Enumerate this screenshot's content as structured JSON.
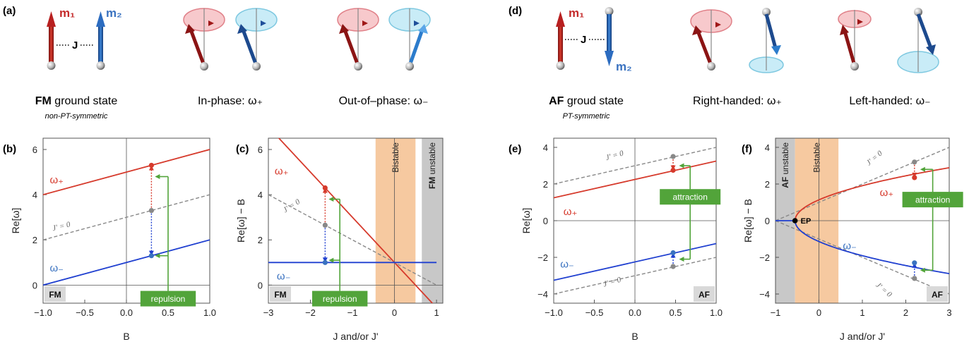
{
  "panel_labels": [
    "(a)",
    "(b)",
    "(c)",
    "(d)",
    "(e)",
    "(f)"
  ],
  "spin_labels": {
    "m1": "m₁",
    "m2": "m₂",
    "J": "J"
  },
  "captions": {
    "a1_bold": "FM",
    "a1_rest": " ground state",
    "a1_sub": "non-PT-symmetric",
    "a2": "In-phase: ω₊",
    "a3": "Out-of–phase: ω₋",
    "d1_bold": "AF",
    "d1_rest": " groud state",
    "d1_sub": "PT-symmetric",
    "d2": "Right-handed: ω₊",
    "d3": "Left-handed: ω₋"
  },
  "colors": {
    "red": "#d63a2c",
    "blue": "#1f3fd0",
    "gray": "#888888",
    "green": "#52a43a",
    "orange": "#f6c9a0",
    "lightgray": "#c8c8c8"
  },
  "chart_data": [
    {
      "id": "b",
      "type": "line",
      "xlabel": "B",
      "ylabel": "Re[ω]",
      "xlim": [
        -1.0,
        1.0
      ],
      "ylim": [
        -0.8,
        6.5
      ],
      "xticks": [
        -1.0,
        -0.5,
        0.0,
        0.5,
        1.0
      ],
      "xtick_labels": [
        "−1.0",
        "−0.5",
        "0.0",
        "0.5",
        "1.0"
      ],
      "yticks": [
        0,
        2,
        4,
        6
      ],
      "ytick_labels": [
        "0",
        "2",
        "4",
        "6"
      ],
      "series": [
        {
          "name": "ω₊",
          "color": "red",
          "x": [
            -1.0,
            1.0
          ],
          "y": [
            4.0,
            6.0
          ]
        },
        {
          "name": "J' = 0",
          "color": "gray",
          "dashed": true,
          "x": [
            -1.0,
            1.0
          ],
          "y": [
            2.0,
            4.0
          ]
        },
        {
          "name": "ω₋",
          "color": "blue",
          "x": [
            -1.0,
            1.0
          ],
          "y": [
            0.0,
            2.0
          ]
        }
      ],
      "points": [
        {
          "x": 0.3,
          "y": 5.3,
          "color": "red"
        },
        {
          "x": 0.3,
          "y": 3.3,
          "color": "gray"
        },
        {
          "x": 0.3,
          "y": 1.3,
          "color": "blue"
        }
      ],
      "shift_arrows": [
        {
          "x": 0.3,
          "from": 3.3,
          "to": 5.3,
          "color": "red"
        },
        {
          "x": 0.3,
          "from": 3.3,
          "to": 1.3,
          "color": "blue"
        }
      ],
      "bracket": {
        "x_vertical": 0.5,
        "y_from": 4.8,
        "y_mid": 3.05,
        "y_to": 1.3,
        "x_target": 0.3,
        "label": "repulsion",
        "label_y": -0.6
      },
      "series_labels": [
        {
          "text": "ω₊",
          "color": "red",
          "x": -0.92,
          "y": 4.5
        },
        {
          "text": "J' = 0",
          "color": "gray",
          "x": -0.88,
          "y": 2.4,
          "angle": -14
        },
        {
          "text": "ω₋",
          "color": "blue",
          "x": -0.92,
          "y": 0.6
        }
      ],
      "corner_label": "FM"
    },
    {
      "id": "c",
      "type": "line",
      "xlabel": "J and/or J'",
      "ylabel": "Re[ω] − B",
      "xlim": [
        -3.0,
        1.15
      ],
      "ylim": [
        -0.8,
        6.5
      ],
      "xticks": [
        -3,
        -2,
        -1,
        0,
        1
      ],
      "xtick_labels": [
        "−3",
        "−2",
        "−1",
        "0",
        "1"
      ],
      "yticks": [
        0,
        2,
        4,
        6
      ],
      "ytick_labels": [
        "0",
        "2",
        "4",
        "6"
      ],
      "regions": [
        {
          "x0": -0.45,
          "x1": 0.5,
          "color": "orange",
          "label": "Bistable"
        },
        {
          "x0": 0.65,
          "x1": 1.15,
          "color": "lightgray",
          "label_bold": "FM",
          "label": " unstable"
        }
      ],
      "series": [
        {
          "name": "ω₊",
          "color": "red",
          "x": [
            -3.0,
            1.0
          ],
          "y": [
            7.0,
            -1.0
          ]
        },
        {
          "name": "J' = 0",
          "color": "gray",
          "dashed": true,
          "x": [
            -3.0,
            1.0
          ],
          "y": [
            4.0,
            0.0
          ]
        },
        {
          "name": "ω₋",
          "color": "blue",
          "x": [
            -3.0,
            1.0
          ],
          "y": [
            1.0,
            1.0
          ]
        }
      ],
      "points": [
        {
          "x": -1.65,
          "y": 4.3,
          "color": "red"
        },
        {
          "x": -1.65,
          "y": 2.65,
          "color": "gray"
        },
        {
          "x": -1.65,
          "y": 1.0,
          "color": "blue"
        }
      ],
      "shift_arrows": [
        {
          "x": -1.65,
          "from": 2.65,
          "to": 4.3,
          "color": "red"
        },
        {
          "x": -1.65,
          "from": 2.65,
          "to": 1.0,
          "color": "blue"
        }
      ],
      "bracket": {
        "x_vertical": -1.3,
        "y_from": 3.8,
        "y_mid": 2.45,
        "y_to": 1.1,
        "x_target": -1.65,
        "label": "repulsion",
        "label_y": -0.6
      },
      "series_labels": [
        {
          "text": "ω₊",
          "color": "red",
          "x": -2.85,
          "y": 4.9
        },
        {
          "text": "J' = 0",
          "color": "gray",
          "x": -2.6,
          "y": 3.2,
          "angle": -33
        },
        {
          "text": "ω₋",
          "color": "blue",
          "x": -2.8,
          "y": 0.25
        }
      ],
      "corner_label": "FM"
    },
    {
      "id": "e",
      "type": "line",
      "xlabel": "B",
      "ylabel": "Re[ω]",
      "xlim": [
        -1.0,
        1.0
      ],
      "ylim": [
        -4.5,
        4.5
      ],
      "xticks": [
        -1.0,
        -0.5,
        0.0,
        0.5,
        1.0
      ],
      "xtick_labels": [
        "−1.0",
        "−0.5",
        "0.0",
        "0.5",
        "1.0"
      ],
      "yticks": [
        -4,
        -2,
        0,
        2,
        4
      ],
      "ytick_labels": [
        "−4",
        "−2",
        "0",
        "2",
        "4"
      ],
      "series": [
        {
          "name": "J' = 0 upper",
          "color": "gray",
          "dashed": true,
          "x": [
            -1.0,
            1.0
          ],
          "y": [
            2.0,
            4.0
          ]
        },
        {
          "name": "ω₊",
          "color": "red",
          "x": [
            -1.0,
            1.0
          ],
          "y": [
            1.25,
            3.25
          ]
        },
        {
          "name": "ω₋",
          "color": "blue",
          "x": [
            -1.0,
            1.0
          ],
          "y": [
            -3.25,
            -1.25
          ]
        },
        {
          "name": "J' = 0 lower",
          "color": "gray",
          "dashed": true,
          "x": [
            -1.0,
            1.0
          ],
          "y": [
            -4.0,
            -2.0
          ]
        }
      ],
      "points": [
        {
          "x": 0.47,
          "y": 3.5,
          "color": "gray"
        },
        {
          "x": 0.47,
          "y": 2.75,
          "color": "red"
        },
        {
          "x": 0.47,
          "y": -1.75,
          "color": "blue"
        },
        {
          "x": 0.47,
          "y": -2.5,
          "color": "gray"
        }
      ],
      "shift_arrows": [
        {
          "x": 0.47,
          "from": 3.5,
          "to": 2.75,
          "color": "red"
        },
        {
          "x": 0.47,
          "from": -2.5,
          "to": -1.75,
          "color": "blue"
        }
      ],
      "bracket": {
        "x_vertical": 0.68,
        "y_from": 3.0,
        "y_mid": 0.5,
        "y_to": -2.1,
        "x_target": 0.5,
        "label": "attraction",
        "label_y": 1.3
      },
      "series_labels": [
        {
          "text": "J' = 0",
          "color": "gray",
          "x": -0.35,
          "y": 3.3,
          "angle": -16
        },
        {
          "text": "ω₊",
          "color": "red",
          "x": -0.88,
          "y": 0.3
        },
        {
          "text": "ω₋",
          "color": "blue",
          "x": -0.92,
          "y": -2.55
        },
        {
          "text": "J' = 0",
          "color": "gray",
          "x": -0.38,
          "y": -3.6,
          "angle": -16
        }
      ],
      "corner_label": "AF"
    },
    {
      "id": "f",
      "type": "line",
      "xlabel": "J and/or J'",
      "ylabel": "Re[ω] − B",
      "xlim": [
        -1.0,
        3.0
      ],
      "ylim": [
        -4.5,
        4.5
      ],
      "xticks": [
        -1,
        0,
        1,
        2,
        3
      ],
      "xtick_labels": [
        "−1",
        "0",
        "1",
        "2",
        "3"
      ],
      "yticks": [
        -4,
        -2,
        0,
        2,
        4
      ],
      "ytick_labels": [
        "−4",
        "−2",
        "0",
        "2",
        "4"
      ],
      "regions": [
        {
          "x0": -1.0,
          "x1": -0.55,
          "color": "lightgray",
          "label_bold": "AF",
          "label": " unstable"
        },
        {
          "x0": -0.55,
          "x1": 0.45,
          "color": "orange",
          "label": "Bistable"
        }
      ],
      "curves": [
        {
          "name": "ω₊",
          "color": "red",
          "branch": "upper",
          "x0": -0.55
        },
        {
          "name": "ω₋",
          "color": "blue",
          "branch": "lower",
          "x0": -0.55
        }
      ],
      "flat_segment": {
        "x": [
          -1.0,
          -0.55
        ],
        "y": [
          0,
          0
        ]
      },
      "series": [
        {
          "name": "J' = 0 upper",
          "color": "gray",
          "dashed": true,
          "x": [
            -1.0,
            3.0
          ],
          "y": [
            0.0,
            4.0
          ]
        },
        {
          "name": "J' = 0 lower",
          "color": "gray",
          "dashed": true,
          "x": [
            -1.0,
            3.0
          ],
          "y": [
            0.0,
            -4.0
          ]
        }
      ],
      "ep_point": {
        "x": -0.55,
        "y": 0,
        "label": "EP"
      },
      "points": [
        {
          "x": 2.2,
          "y": 3.2,
          "color": "gray"
        },
        {
          "x": 2.2,
          "y": 2.35,
          "color": "red"
        },
        {
          "x": 2.2,
          "y": -2.3,
          "color": "blue"
        },
        {
          "x": 2.2,
          "y": -3.15,
          "color": "gray"
        }
      ],
      "shift_arrows": [
        {
          "x": 2.2,
          "from": 3.2,
          "to": 2.35,
          "color": "red"
        },
        {
          "x": 2.2,
          "from": -3.15,
          "to": -2.3,
          "color": "blue"
        }
      ],
      "bracket": {
        "x_vertical": 2.62,
        "y_from": 2.8,
        "y_mid": 0.3,
        "y_to": -2.7,
        "x_target": 2.25,
        "label": "attraction",
        "label_y": 1.15
      },
      "series_labels": [
        {
          "text": "J' = 0",
          "color": "gray",
          "x": 1.15,
          "y": 3.0,
          "angle": -40
        },
        {
          "text": "ω₊",
          "color": "red",
          "x": 1.4,
          "y": 1.35
        },
        {
          "text": "ω₋",
          "color": "blue",
          "x": 0.55,
          "y": -1.55
        },
        {
          "text": "J' = 0",
          "color": "gray",
          "x": 1.3,
          "y": -3.55,
          "angle": 40
        }
      ],
      "corner_label": "AF"
    }
  ]
}
